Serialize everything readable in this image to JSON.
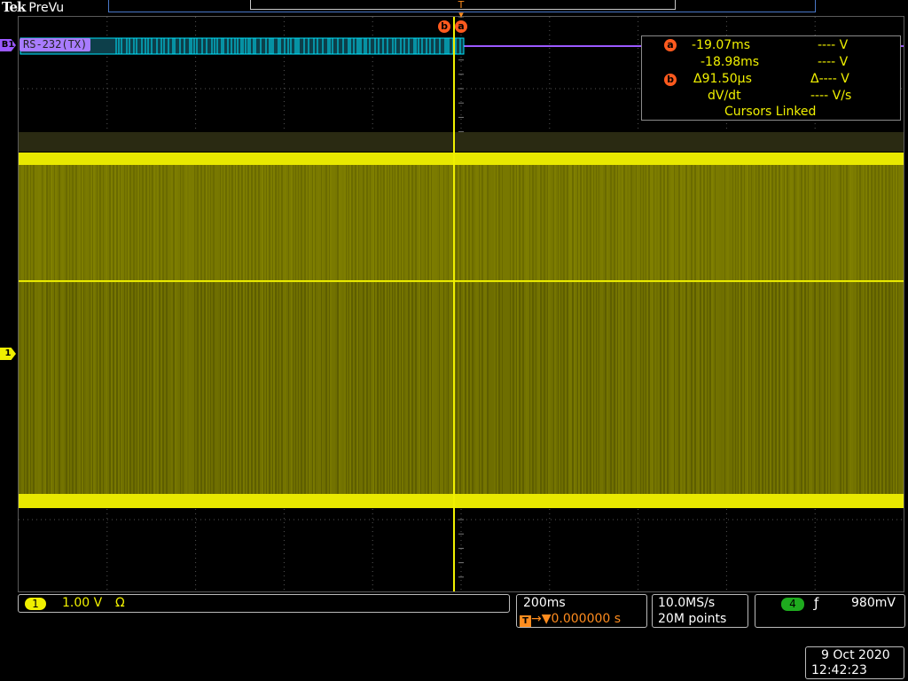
{
  "brand": {
    "logo": "Tek",
    "mode": "PreVu"
  },
  "bus": {
    "marker": "B1",
    "label": "RS-232(TX)",
    "color": "#a87cff"
  },
  "channel1": {
    "marker": "1",
    "color": "#f0f000"
  },
  "cursors": {
    "b_badge": "b",
    "a_badge": "a",
    "trigger_marker": "T",
    "color": "#ff5a1e"
  },
  "readout": {
    "row1": {
      "badge": "a",
      "time": "-19.07ms",
      "volt": "---- V"
    },
    "row2": {
      "time": "-18.98ms",
      "volt": "---- V"
    },
    "row3": {
      "badge": "b",
      "delta_time": "Δ91.50µs",
      "delta_volt": "Δ---- V"
    },
    "row4": {
      "label": "dV/dt",
      "value": "---- V/s"
    },
    "row5": {
      "label": "Cursors Linked"
    }
  },
  "status": {
    "ch1": {
      "badge": "1",
      "scale": "1.00 V",
      "coupling": "Ω"
    },
    "horizontal": {
      "scale": "200ms",
      "trigger_icon": "T",
      "delay": "→▼0.000000 s"
    },
    "acquisition": {
      "rate": "10.0MS/s",
      "length": "20M points"
    },
    "trigger": {
      "source": "4",
      "slope_icon": "rising-edge-icon",
      "slope_glyph": "ƒ",
      "level": "980mV"
    }
  },
  "datetime": {
    "date": "9 Oct  2020",
    "time": "12:42:23"
  }
}
